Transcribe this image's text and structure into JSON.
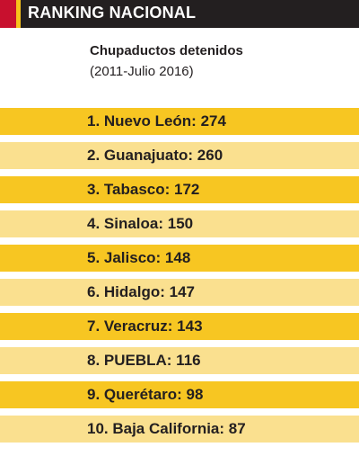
{
  "header": {
    "title": "RANKING NACIONAL",
    "colors": {
      "bar": "#231f20",
      "accent_red": "#c8102e",
      "accent_yellow": "#f7c21b"
    }
  },
  "subtitle": {
    "line1": "Chupaductos detenidos",
    "line2": "(2011-Julio 2016)"
  },
  "colors": {
    "row_dark": "#f7c622",
    "row_light": "#fae08f",
    "text": "#231f20"
  },
  "chart_data": {
    "type": "table",
    "title": "RANKING NACIONAL",
    "subtitle": "Chupaductos detenidos (2011-Julio 2016)",
    "rows": [
      {
        "rank": 1,
        "state": "Nuevo León",
        "value": 274,
        "label": "1. Nuevo León: 274"
      },
      {
        "rank": 2,
        "state": "Guanajuato",
        "value": 260,
        "label": "2. Guanajuato: 260"
      },
      {
        "rank": 3,
        "state": "Tabasco",
        "value": 172,
        "label": "3. Tabasco: 172"
      },
      {
        "rank": 4,
        "state": "Sinaloa",
        "value": 150,
        "label": "4. Sinaloa: 150"
      },
      {
        "rank": 5,
        "state": "Jalisco",
        "value": 148,
        "label": "5. Jalisco: 148"
      },
      {
        "rank": 6,
        "state": "Hidalgo",
        "value": 147,
        "label": "6. Hidalgo: 147"
      },
      {
        "rank": 7,
        "state": "Veracruz",
        "value": 143,
        "label": "7. Veracruz: 143"
      },
      {
        "rank": 8,
        "state": "PUEBLA",
        "value": 116,
        "label": "8. PUEBLA: 116"
      },
      {
        "rank": 9,
        "state": "Querétaro",
        "value": 98,
        "label": "9. Querétaro: 98"
      },
      {
        "rank": 10,
        "state": "Baja California",
        "value": 87,
        "label": "10. Baja California: 87"
      }
    ]
  }
}
